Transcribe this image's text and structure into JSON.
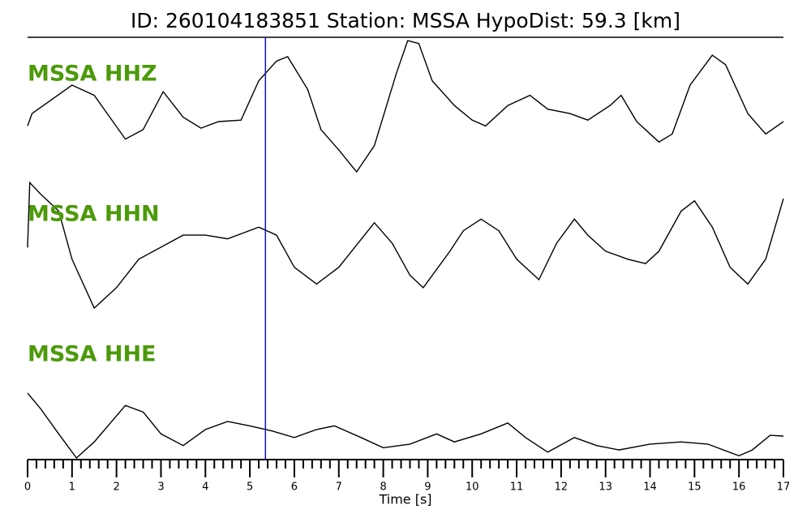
{
  "chart_data": {
    "type": "line",
    "title": "ID: 260104183851   Station: MSSA   HypoDist:    59.3 [km]",
    "xlabel": "Time [s]",
    "xlim": [
      0,
      17
    ],
    "xticks": [
      0,
      1,
      2,
      3,
      4,
      5,
      6,
      7,
      8,
      9,
      10,
      11,
      12,
      13,
      14,
      15,
      16,
      17
    ],
    "minor_ticks_per_unit": 5,
    "pick_x": 5.35,
    "pick_color": "#1010d0",
    "label_color": "#4c9a0a",
    "series": [
      {
        "name": "MSSA HHZ",
        "color": "#000000",
        "x": [
          0,
          0.1,
          1.0,
          1.5,
          2.2,
          2.6,
          3.05,
          3.5,
          3.9,
          4.3,
          4.8,
          5.2,
          5.6,
          5.85,
          6.3,
          6.6,
          7.0,
          7.4,
          7.8,
          8.3,
          8.55,
          8.8,
          9.1,
          9.6,
          10.0,
          10.3,
          10.8,
          11.3,
          11.7,
          12.2,
          12.6,
          13.1,
          13.35,
          13.7,
          14.2,
          14.5,
          14.9,
          15.4,
          15.7,
          16.2,
          16.6,
          17.0
        ],
        "values": [
          -0.26,
          -0.09,
          0.3,
          0.16,
          -0.44,
          -0.31,
          0.21,
          -0.14,
          -0.29,
          -0.2,
          -0.18,
          0.36,
          0.63,
          0.69,
          0.24,
          -0.31,
          -0.59,
          -0.89,
          -0.53,
          0.47,
          0.91,
          0.87,
          0.36,
          0.02,
          -0.18,
          -0.26,
          0.02,
          0.16,
          -0.03,
          -0.09,
          -0.18,
          0.02,
          0.16,
          -0.2,
          -0.48,
          -0.37,
          0.3,
          0.71,
          0.58,
          -0.09,
          -0.37,
          -0.2
        ]
      },
      {
        "name": "MSSA HHN",
        "color": "#000000",
        "x": [
          0,
          0.05,
          0.3,
          0.7,
          1.0,
          1.5,
          2.0,
          2.5,
          3.5,
          4.0,
          4.5,
          5.2,
          5.6,
          6.0,
          6.5,
          7.0,
          7.8,
          8.2,
          8.6,
          8.9,
          9.5,
          9.8,
          10.2,
          10.6,
          11.0,
          11.5,
          11.9,
          12.3,
          12.6,
          13.0,
          13.5,
          13.9,
          14.2,
          14.7,
          15.0,
          15.4,
          15.8,
          16.2,
          16.6,
          17.0
        ],
        "values": [
          -0.06,
          0.83,
          0.67,
          0.44,
          -0.22,
          -0.89,
          -0.61,
          -0.22,
          0.11,
          0.11,
          0.06,
          0.22,
          0.11,
          -0.33,
          -0.56,
          -0.33,
          0.28,
          0,
          -0.44,
          -0.61,
          -0.11,
          0.17,
          0.33,
          0.17,
          -0.22,
          -0.5,
          0,
          0.33,
          0.11,
          -0.11,
          -0.22,
          -0.28,
          -0.11,
          0.44,
          0.58,
          0.22,
          -0.33,
          -0.56,
          -0.22,
          0.61
        ]
      },
      {
        "name": "MSSA HHE",
        "color": "#000000",
        "x": [
          0,
          0.3,
          0.7,
          1.1,
          1.5,
          2.2,
          2.6,
          3.0,
          3.5,
          4.0,
          4.5,
          5.0,
          5.5,
          6.0,
          6.5,
          6.9,
          7.5,
          8.0,
          8.6,
          9.2,
          9.6,
          10.2,
          10.8,
          11.2,
          11.7,
          12.3,
          12.8,
          13.3,
          14.0,
          14.7,
          15.3,
          16.0,
          16.3,
          16.7,
          17.0
        ],
        "values": [
          0.39,
          0.17,
          -0.17,
          -0.5,
          -0.28,
          0.22,
          0.13,
          -0.17,
          -0.33,
          -0.11,
          0,
          -0.06,
          -0.13,
          -0.22,
          -0.11,
          -0.06,
          -0.22,
          -0.36,
          -0.31,
          -0.17,
          -0.28,
          -0.17,
          -0.02,
          -0.22,
          -0.42,
          -0.22,
          -0.33,
          -0.39,
          -0.31,
          -0.28,
          -0.31,
          -0.47,
          -0.39,
          -0.19,
          -0.2
        ]
      }
    ]
  }
}
